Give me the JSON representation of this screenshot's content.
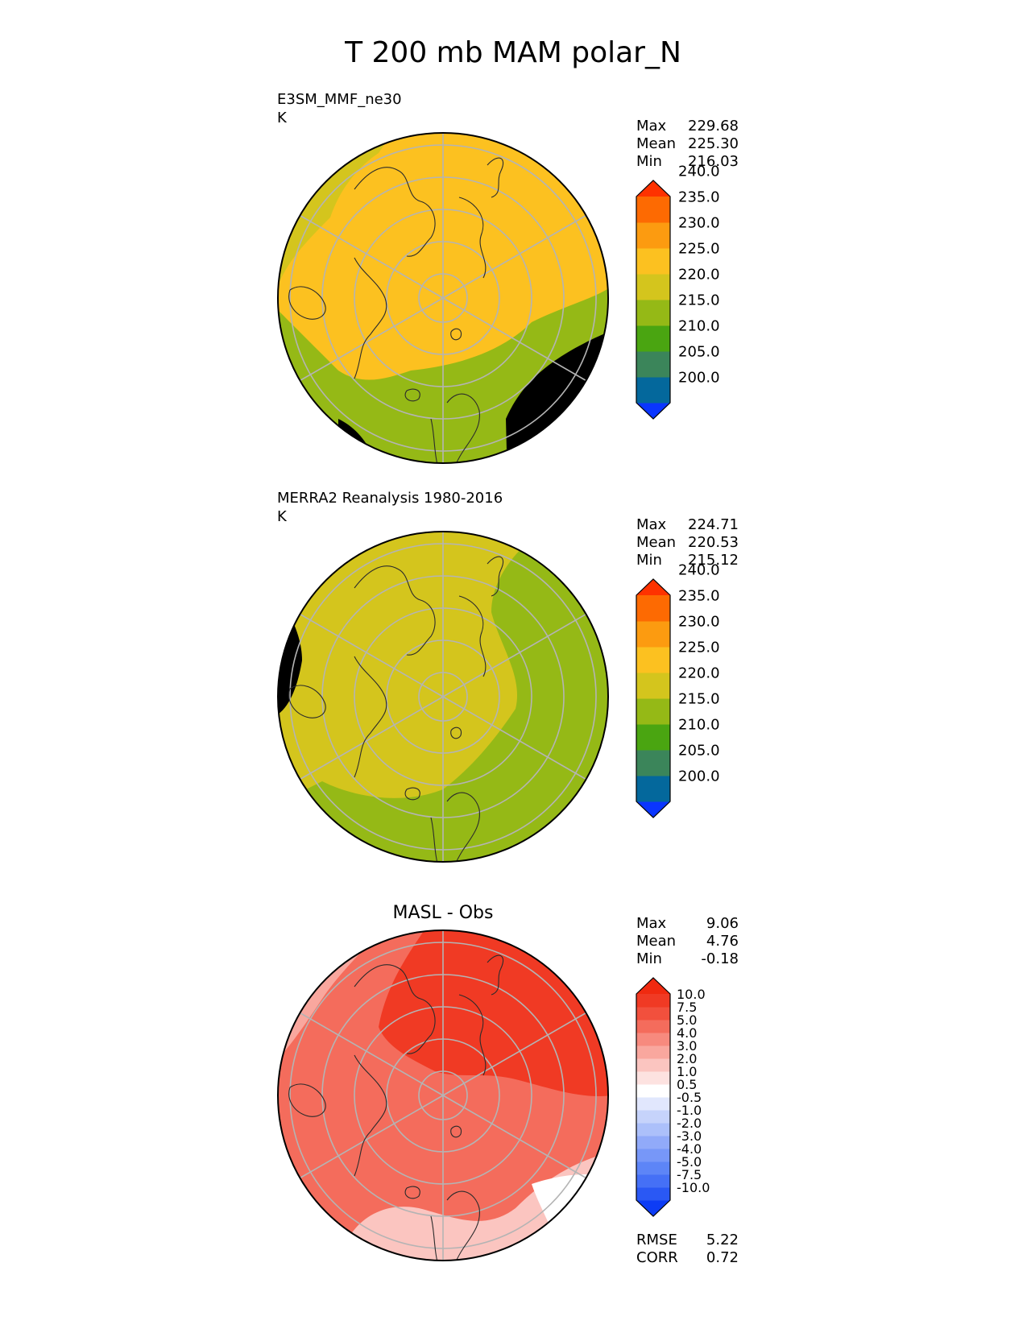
{
  "figure": {
    "title": "T 200 mb MAM polar_N"
  },
  "chart_data": [
    {
      "type": "heatmap",
      "projection": "north-polar-stereographic",
      "title": "E3SM_MMF_ne30",
      "units": "K",
      "stats": [
        {
          "label": "Max",
          "value": "229.68"
        },
        {
          "label": "Mean",
          "value": "225.30"
        },
        {
          "label": "Min",
          "value": "216.03"
        }
      ],
      "colorbar": {
        "levels": [
          195,
          200,
          205,
          210,
          215,
          220,
          225,
          230,
          235,
          240,
          245
        ],
        "tick_labels": [
          "200.0",
          "205.0",
          "210.0",
          "215.0",
          "220.0",
          "225.0",
          "230.0",
          "235.0",
          "240.0"
        ],
        "colors": [
          "#0a35ff",
          "#04689c",
          "#3b855a",
          "#4aa511",
          "#95b916",
          "#d4c51d",
          "#fcc120",
          "#fc9b10",
          "#fd6a02",
          "#fe3200"
        ],
        "extend": "both"
      },
      "field_summary": {
        "background": "#fcc120",
        "regions": [
          "#d4c51d",
          "#95b916"
        ]
      }
    },
    {
      "type": "heatmap",
      "projection": "north-polar-stereographic",
      "title": "MERRA2 Reanalysis 1980-2016",
      "units": "K",
      "stats": [
        {
          "label": "Max",
          "value": "224.71"
        },
        {
          "label": "Mean",
          "value": "220.53"
        },
        {
          "label": "Min",
          "value": "215.12"
        }
      ],
      "colorbar": {
        "levels": [
          195,
          200,
          205,
          210,
          215,
          220,
          225,
          230,
          235,
          240,
          245
        ],
        "tick_labels": [
          "200.0",
          "205.0",
          "210.0",
          "215.0",
          "220.0",
          "225.0",
          "230.0",
          "235.0",
          "240.0"
        ],
        "colors": [
          "#0a35ff",
          "#04689c",
          "#3b855a",
          "#4aa511",
          "#95b916",
          "#d4c51d",
          "#fcc120",
          "#fc9b10",
          "#fd6a02",
          "#fe3200"
        ],
        "extend": "both"
      },
      "field_summary": {
        "background": "#d4c51d",
        "regions": [
          "#95b916"
        ]
      }
    },
    {
      "type": "heatmap",
      "projection": "north-polar-stereographic",
      "title": "MASL - Obs",
      "units": "",
      "stats": [
        {
          "label": "Max",
          "value": "9.06"
        },
        {
          "label": "Mean",
          "value": "4.76"
        },
        {
          "label": "Min",
          "value": "-0.18"
        }
      ],
      "metrics": [
        {
          "label": "RMSE",
          "value": "5.22"
        },
        {
          "label": "CORR",
          "value": "0.72"
        }
      ],
      "colorbar": {
        "levels": [
          -12.5,
          -10,
          -7.5,
          -5,
          -4,
          -3,
          -2,
          -1,
          -0.5,
          0.5,
          1,
          2,
          3,
          4,
          5,
          7.5,
          10,
          12.5
        ],
        "tick_labels": [
          "-10.0",
          "-7.5",
          "-5.0",
          "-4.0",
          "-3.0",
          "-2.0",
          "-1.0",
          "-0.5",
          "0.5",
          "1.0",
          "2.0",
          "3.0",
          "4.0",
          "5.0",
          "7.5",
          "10.0"
        ],
        "colors": [
          "#0d3cf5",
          "#2a58f4",
          "#4570f6",
          "#5d85f7",
          "#7797f8",
          "#91aaf9",
          "#acc0fa",
          "#c6d3fb",
          "#e1e7fd",
          "#ffffff",
          "#fde2e0",
          "#fbc5c0",
          "#f9a79e",
          "#f78a7e",
          "#f46c5c",
          "#f2503d",
          "#f03a24",
          "#f02a10"
        ],
        "extend": "both"
      },
      "field_summary": {
        "background": "#f46c5c",
        "regions": [
          "#f9a79e",
          "#f03a24",
          "#fbc5c0",
          "#ffffff"
        ]
      }
    }
  ]
}
